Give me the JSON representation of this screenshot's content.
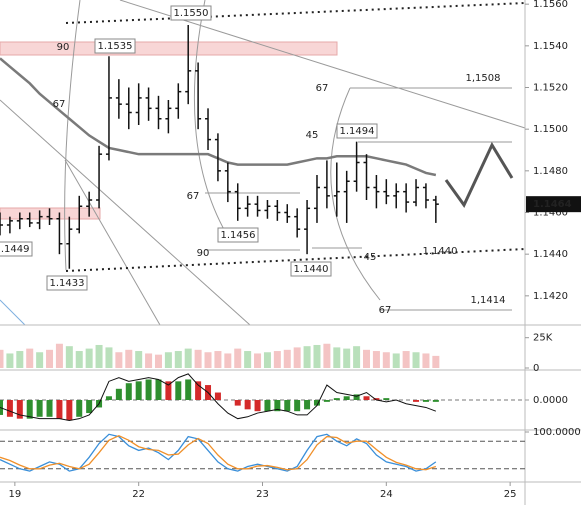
{
  "chart_data": [
    {
      "type": "ohlc",
      "x": [
        -0.12,
        -0.04,
        0.04,
        0.12,
        0.2,
        0.28,
        0.36,
        0.44,
        0.52,
        0.6,
        0.68,
        0.76,
        0.84,
        0.92,
        1.0,
        1.08,
        1.16,
        1.24,
        1.32,
        1.4,
        1.48,
        1.56,
        1.64,
        1.72,
        1.8,
        1.88,
        1.96,
        2.04,
        2.12,
        2.2,
        2.28,
        2.36,
        2.44,
        2.52,
        2.6,
        2.68,
        2.76,
        2.84,
        2.92,
        3.0,
        3.08,
        3.16,
        3.24,
        3.32,
        3.4
      ],
      "open": [
        1.1458,
        1.1454,
        1.1456,
        1.1457,
        1.1455,
        1.1458,
        1.1457,
        1.1445,
        1.1452,
        1.1463,
        1.1466,
        1.1488,
        1.1515,
        1.1512,
        1.1508,
        1.1515,
        1.151,
        1.1505,
        1.151,
        1.1518,
        1.1528,
        1.1505,
        1.1495,
        1.148,
        1.147,
        1.1462,
        1.1464,
        1.1461,
        1.1463,
        1.146,
        1.1458,
        1.1452,
        1.1462,
        1.1472,
        1.1468,
        1.147,
        1.1475,
        1.1484,
        1.1472,
        1.147,
        1.1468,
        1.147,
        1.1465,
        1.1472,
        1.1466
      ],
      "high": [
        1.146,
        1.1458,
        1.146,
        1.146,
        1.1461,
        1.1462,
        1.146,
        1.1458,
        1.1468,
        1.147,
        1.1492,
        1.1535,
        1.1524,
        1.152,
        1.1522,
        1.152,
        1.1516,
        1.1514,
        1.1522,
        1.155,
        1.1532,
        1.151,
        1.1498,
        1.1484,
        1.1474,
        1.1468,
        1.1468,
        1.1466,
        1.1466,
        1.1464,
        1.1462,
        1.1466,
        1.1478,
        1.1485,
        1.1484,
        1.148,
        1.1494,
        1.1488,
        1.1478,
        1.1476,
        1.1474,
        1.1474,
        1.1476,
        1.1474,
        1.1468
      ],
      "low": [
        1.1449,
        1.145,
        1.1452,
        1.1453,
        1.1452,
        1.1454,
        1.144,
        1.1433,
        1.145,
        1.1458,
        1.1462,
        1.1485,
        1.1505,
        1.15,
        1.1502,
        1.1504,
        1.15,
        1.1498,
        1.1505,
        1.1512,
        1.15,
        1.149,
        1.1475,
        1.1465,
        1.1456,
        1.1458,
        1.1458,
        1.1457,
        1.1456,
        1.1455,
        1.1448,
        1.144,
        1.1455,
        1.1462,
        1.1458,
        1.1455,
        1.147,
        1.1466,
        1.1462,
        1.1464,
        1.1462,
        1.146,
        1.1463,
        1.1462,
        1.1455
      ],
      "close": [
        1.1454,
        1.1456,
        1.1457,
        1.1455,
        1.1458,
        1.1457,
        1.1445,
        1.1452,
        1.1463,
        1.1466,
        1.1488,
        1.1515,
        1.1512,
        1.1508,
        1.1515,
        1.151,
        1.1505,
        1.151,
        1.1518,
        1.1528,
        1.1505,
        1.1495,
        1.148,
        1.147,
        1.1462,
        1.1464,
        1.1461,
        1.1463,
        1.146,
        1.1458,
        1.1452,
        1.1462,
        1.1472,
        1.1468,
        1.147,
        1.1475,
        1.1484,
        1.1472,
        1.147,
        1.1468,
        1.147,
        1.1465,
        1.1472,
        1.1466,
        1.1464
      ],
      "color": "#111",
      "moving_average": {
        "color": "#7a7a7a",
        "values": [
          1.1534,
          1.153,
          1.1526,
          1.1522,
          1.1517,
          1.1513,
          1.1509,
          1.1505,
          1.1501,
          1.1497,
          1.1494,
          1.1491,
          1.149,
          1.1489,
          1.1488,
          1.1488,
          1.1488,
          1.1488,
          1.1488,
          1.1488,
          1.1488,
          1.1488,
          1.1486,
          1.1484,
          1.1483,
          1.1483,
          1.1483,
          1.1483,
          1.1483,
          1.1483,
          1.1484,
          1.1485,
          1.1486,
          1.1486,
          1.1487,
          1.1487,
          1.1487,
          1.1487,
          1.1486,
          1.1485,
          1.1484,
          1.1483,
          1.1481,
          1.1479,
          1.1478
        ]
      },
      "xlim": [
        -0.12,
        4.12
      ],
      "xticks": [
        {
          "value": 0,
          "label": "19"
        },
        {
          "value": 1,
          "label": "22"
        },
        {
          "value": 2,
          "label": "23"
        },
        {
          "value": 3,
          "label": "24"
        },
        {
          "value": 4,
          "label": "25"
        }
      ],
      "ylim": [
        1.1406,
        1.1562
      ],
      "yticks": [
        {
          "value": 1.142,
          "label": "1.1420"
        },
        {
          "value": 1.144,
          "label": "1.1440"
        },
        {
          "value": 1.146,
          "label": "1.1460"
        },
        {
          "value": 1.148,
          "label": "1.1480"
        },
        {
          "value": 1.15,
          "label": "1.1500"
        },
        {
          "value": 1.152,
          "label": "1.1520"
        },
        {
          "value": 1.154,
          "label": "1.1540"
        },
        {
          "value": 1.156,
          "label": "1.1560"
        }
      ],
      "last_price": {
        "value": 1.1464,
        "label": "1.1464"
      },
      "price_boxes": [
        "1.1550",
        "1.1535",
        "1.1494",
        "1.1456",
        "1.1440",
        "1.1449",
        "1.1433"
      ],
      "price_notes": [
        "1,1508",
        "1.1440",
        "1,1414"
      ],
      "fib_labels": [
        "90",
        "67",
        "67",
        "90",
        "45",
        "67",
        "45",
        "67"
      ]
    },
    {
      "type": "volume",
      "values": [
        15000,
        12000,
        14000,
        16000,
        13000,
        15000,
        20000,
        18000,
        14000,
        16000,
        19000,
        17000,
        13000,
        15000,
        14000,
        12000,
        11000,
        13000,
        14000,
        16000,
        15000,
        13000,
        14000,
        12000,
        16000,
        14000,
        12000,
        13000,
        14000,
        15000,
        17000,
        18000,
        19000,
        20000,
        17000,
        16000,
        18000,
        15000,
        14000,
        13000,
        12000,
        14000,
        13000,
        12000,
        10000
      ],
      "up_color": "#b9e0bb",
      "down_color": "#f4c4c4",
      "ylim": [
        0,
        33000
      ],
      "yticks": [
        0,
        {
          "value": 25000,
          "label": "25K"
        }
      ]
    },
    {
      "type": "macd",
      "histogram": [
        -0.0008,
        -0.0009,
        -0.001,
        -0.001,
        -0.0009,
        -0.0009,
        -0.001,
        -0.0011,
        -0.0009,
        -0.0007,
        -0.0004,
        0.0002,
        0.0006,
        0.0009,
        0.001,
        0.0011,
        0.0011,
        0.001,
        0.001,
        0.0011,
        0.001,
        0.0008,
        0.0004,
        0.0,
        -0.0003,
        -0.0005,
        -0.0006,
        -0.0006,
        -0.0006,
        -0.0006,
        -0.0006,
        -0.0005,
        -0.0003,
        -0.0001,
        0.0001,
        0.0002,
        0.0003,
        0.0002,
        0.0001,
        0.0001,
        0.0,
        0.0,
        -0.0001,
        -0.0001,
        -0.0001
      ],
      "line": [
        -0.0004,
        -0.0006,
        -0.0008,
        -0.0009,
        -0.001,
        -0.001,
        -0.001,
        -0.0011,
        -0.001,
        -0.0008,
        -0.0002,
        0.001,
        0.0012,
        0.001,
        0.0011,
        0.0012,
        0.0011,
        0.0008,
        0.0012,
        0.0014,
        0.0008,
        0.0004,
        -0.0002,
        -0.0007,
        -0.001,
        -0.0009,
        -0.0007,
        -0.0006,
        -0.0005,
        -0.0006,
        -0.0008,
        -0.0008,
        -0.0003,
        0.0008,
        0.0004,
        0.0003,
        0.0002,
        0.0004,
        0.0,
        -0.0001,
        0.0,
        -0.0002,
        -0.0003,
        -0.0004,
        -0.0006
      ],
      "up_color": "#2f8f2f",
      "down_color": "#d42a2a",
      "line_color": "#111",
      "ylim": [
        -0.0015,
        0.0015
      ],
      "yticks": [
        {
          "value": 0,
          "label": "0.0000"
        }
      ]
    },
    {
      "type": "stochastic",
      "series": [
        {
          "color": "#3a8fd9",
          "values": [
            40,
            30,
            20,
            15,
            25,
            35,
            30,
            15,
            20,
            45,
            75,
            95,
            90,
            70,
            60,
            65,
            55,
            40,
            60,
            90,
            85,
            60,
            35,
            20,
            15,
            25,
            30,
            25,
            20,
            15,
            25,
            60,
            90,
            95,
            80,
            70,
            85,
            75,
            50,
            35,
            30,
            25,
            15,
            20,
            35
          ]
        },
        {
          "color": "#f0902a",
          "values": [
            45,
            38,
            28,
            20,
            20,
            28,
            32,
            25,
            20,
            30,
            55,
            82,
            92,
            82,
            68,
            62,
            60,
            50,
            52,
            72,
            86,
            75,
            50,
            30,
            20,
            20,
            26,
            27,
            23,
            18,
            20,
            40,
            72,
            90,
            88,
            76,
            80,
            80,
            62,
            45,
            34,
            28,
            20,
            18,
            25
          ]
        }
      ],
      "ylim": [
        0,
        100
      ],
      "yticks": [
        {
          "value": 100,
          "label": "100.0000"
        }
      ],
      "levels": [
        20,
        80
      ]
    }
  ]
}
